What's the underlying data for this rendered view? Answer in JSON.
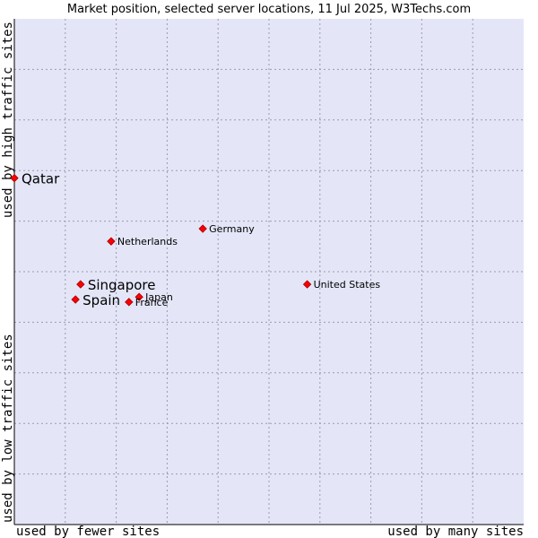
{
  "chart_data": {
    "type": "scatter",
    "title": "Market position, selected server locations, 11 Jul 2025, W3Techs.com",
    "xlabel_left": "used by fewer sites",
    "xlabel_right": "used by many sites",
    "ylabel_bottom": "used by low traffic sites",
    "ylabel_top": "used by high traffic sites",
    "xlim": [
      0,
      10
    ],
    "ylim": [
      0,
      10
    ],
    "grid": true,
    "grid_divisions": 10,
    "colors": {
      "plot_background": "#e4e6f8",
      "point_fill": "#ff0000",
      "point_stroke": "#b00000",
      "grid": "#9a9ab0",
      "axis": "#000000"
    },
    "points": [
      {
        "label": "Qatar",
        "x": 0.0,
        "y": 6.85,
        "emphasis": true
      },
      {
        "label": "Germany",
        "x": 3.7,
        "y": 5.85,
        "emphasis": false
      },
      {
        "label": "Netherlands",
        "x": 1.9,
        "y": 5.6,
        "emphasis": false
      },
      {
        "label": "United States",
        "x": 5.75,
        "y": 4.75,
        "emphasis": false
      },
      {
        "label": "Singapore",
        "x": 1.3,
        "y": 4.75,
        "emphasis": true
      },
      {
        "label": "Japan",
        "x": 2.45,
        "y": 4.5,
        "emphasis": false
      },
      {
        "label": "Spain",
        "x": 1.2,
        "y": 4.45,
        "emphasis": true
      },
      {
        "label": "France",
        "x": 2.25,
        "y": 4.4,
        "emphasis": false
      }
    ]
  }
}
